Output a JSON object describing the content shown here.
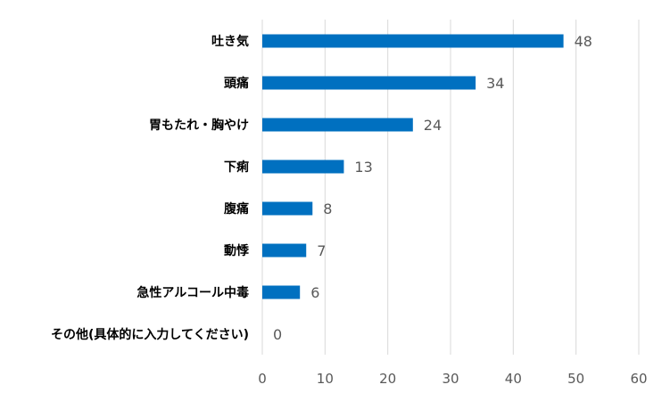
{
  "chart_data": {
    "type": "bar",
    "orientation": "horizontal",
    "title": "",
    "xlabel": "",
    "ylabel": "",
    "categories": [
      "吐き気",
      "頭痛",
      "胃もたれ・胸やけ",
      "下痢",
      "腹痛",
      "動悸",
      "急性アルコール中毒",
      "その他(具体的に入力してください)"
    ],
    "values": [
      48,
      34,
      24,
      13,
      8,
      7,
      6,
      0
    ],
    "xlim": [
      0,
      60
    ],
    "xticks": [
      0,
      10,
      20,
      30,
      40,
      50,
      60
    ],
    "grid": "vertical",
    "legend": "none",
    "data_labels": true,
    "colors": {
      "bar": "#0070C0",
      "grid": "#D9D9D9",
      "tick_text": "#595959",
      "category_text": "#000000"
    }
  }
}
